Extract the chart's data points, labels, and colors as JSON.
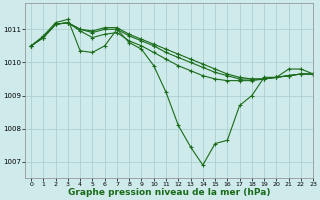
{
  "background_color": "#ceeaea",
  "grid_color": "#aed0d0",
  "line_color": "#1a6b1a",
  "marker_color": "#1a6b1a",
  "xlabel": "Graphe pression niveau de la mer (hPa)",
  "xlabel_fontsize": 6.5,
  "ylim": [
    1006.5,
    1011.8
  ],
  "xlim": [
    -0.5,
    23
  ],
  "yticks": [
    1007,
    1008,
    1009,
    1010,
    1011
  ],
  "xticks": [
    0,
    1,
    2,
    3,
    4,
    5,
    6,
    7,
    8,
    9,
    10,
    11,
    12,
    13,
    14,
    15,
    16,
    17,
    18,
    19,
    20,
    21,
    22,
    23
  ],
  "series": [
    [
      1010.5,
      1010.8,
      1011.2,
      1011.3,
      1010.35,
      1010.3,
      1010.5,
      1011.0,
      1010.6,
      1010.4,
      1009.9,
      1009.1,
      1008.1,
      1007.45,
      1006.9,
      1007.55,
      1007.65,
      1008.7,
      1009.0,
      1009.55,
      1009.55,
      1009.8,
      1009.8,
      1009.65
    ],
    [
      1010.5,
      1010.75,
      1011.15,
      1011.2,
      1011.0,
      1010.95,
      1011.05,
      1011.05,
      1010.85,
      1010.7,
      1010.55,
      1010.4,
      1010.25,
      1010.1,
      1009.95,
      1009.8,
      1009.65,
      1009.55,
      1009.5,
      1009.5,
      1009.55,
      1009.6,
      1009.65,
      1009.65
    ],
    [
      1010.5,
      1010.75,
      1011.15,
      1011.2,
      1011.0,
      1010.9,
      1011.0,
      1011.0,
      1010.8,
      1010.65,
      1010.5,
      1010.3,
      1010.15,
      1010.0,
      1009.85,
      1009.7,
      1009.6,
      1009.5,
      1009.5,
      1009.5,
      1009.55,
      1009.6,
      1009.65,
      1009.65
    ],
    [
      1010.5,
      1010.75,
      1011.15,
      1011.2,
      1010.95,
      1010.75,
      1010.85,
      1010.9,
      1010.65,
      1010.5,
      1010.3,
      1010.1,
      1009.9,
      1009.75,
      1009.6,
      1009.5,
      1009.45,
      1009.45,
      1009.45,
      1009.5,
      1009.55,
      1009.6,
      1009.65,
      1009.65
    ]
  ]
}
